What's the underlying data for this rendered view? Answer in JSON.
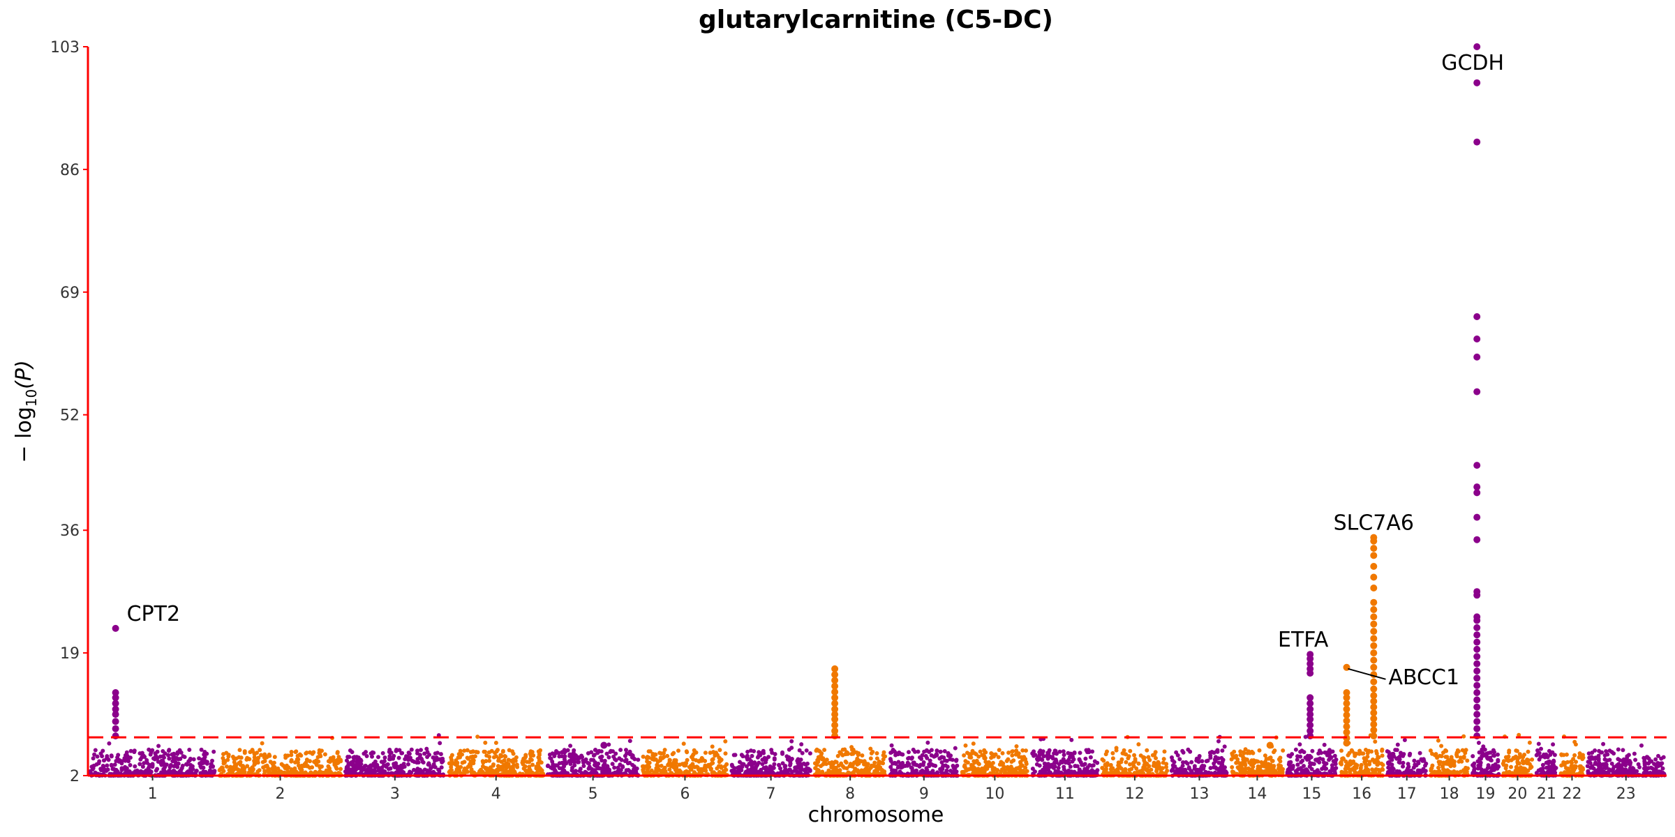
{
  "chart_data": {
    "type": "scatter",
    "subtype": "manhattan",
    "title": "glutarylcarnitine (C5-DC)",
    "xlabel": "chromosome",
    "ylabel_prefix": "− log",
    "ylabel_sub": "10",
    "ylabel_suffix": "(P)",
    "ylim": [
      2,
      103
    ],
    "yticks": [
      2,
      19,
      36,
      52,
      69,
      86,
      103
    ],
    "threshold": 7.3,
    "threshold_color": "#ff0000",
    "axis_color": "#ff0000",
    "colors": {
      "odd": "#8b008b",
      "even": "#f07800"
    },
    "chromosomes": [
      {
        "label": "1",
        "start": 0,
        "end": 248
      },
      {
        "label": "2",
        "start": 248,
        "end": 490
      },
      {
        "label": "3",
        "start": 490,
        "end": 688
      },
      {
        "label": "4",
        "start": 688,
        "end": 878
      },
      {
        "label": "5",
        "start": 878,
        "end": 1060
      },
      {
        "label": "6",
        "start": 1060,
        "end": 1231
      },
      {
        "label": "7",
        "start": 1231,
        "end": 1390
      },
      {
        "label": "8",
        "start": 1390,
        "end": 1535
      },
      {
        "label": "9",
        "start": 1535,
        "end": 1673
      },
      {
        "label": "10",
        "start": 1673,
        "end": 1807
      },
      {
        "label": "11",
        "start": 1807,
        "end": 1942
      },
      {
        "label": "12",
        "start": 1942,
        "end": 2075
      },
      {
        "label": "13",
        "start": 2075,
        "end": 2190
      },
      {
        "label": "14",
        "start": 2190,
        "end": 2297
      },
      {
        "label": "15",
        "start": 2297,
        "end": 2399
      },
      {
        "label": "16",
        "start": 2399,
        "end": 2489
      },
      {
        "label": "17",
        "start": 2489,
        "end": 2572
      },
      {
        "label": "18",
        "start": 2572,
        "end": 2652
      },
      {
        "label": "19",
        "start": 2652,
        "end": 2711
      },
      {
        "label": "20",
        "start": 2711,
        "end": 2775
      },
      {
        "label": "21",
        "start": 2775,
        "end": 2822
      },
      {
        "label": "22",
        "start": 2822,
        "end": 2873
      },
      {
        "label": "23",
        "start": 2873,
        "end": 3029
      }
    ],
    "peaks": [
      {
        "chr": "1",
        "pos": 53,
        "values": [
          7.5,
          8.5,
          9.5,
          10.5,
          11.2,
          12.0,
          12.8,
          13.5,
          22.4
        ]
      },
      {
        "chr": "5",
        "pos": 112,
        "values": [
          6.2
        ]
      },
      {
        "chr": "8",
        "pos": 43,
        "values": [
          7.5,
          8.2,
          9.0,
          9.8,
          10.5,
          11.2,
          12.0,
          12.8,
          13.6,
          14.4,
          15.2,
          16.0,
          16.8
        ]
      },
      {
        "chr": "14",
        "pos": 78,
        "values": [
          6.2
        ]
      },
      {
        "chr": "15",
        "pos": 48,
        "values": [
          7.5,
          8.2,
          9.0,
          9.8,
          10.5,
          11.2,
          12.0,
          12.8,
          16.2,
          16.8,
          17.5,
          18.2,
          18.8
        ]
      },
      {
        "chr": "16",
        "pos": 16,
        "values": [
          6.5,
          7.2,
          8.0,
          8.8,
          9.6,
          10.4,
          11.2,
          12.0,
          12.8,
          13.5,
          17.0
        ]
      },
      {
        "chr": "16",
        "pos": 68,
        "values": [
          7.5,
          8.3,
          9.1,
          9.9,
          10.7,
          11.5,
          12.3,
          13.1,
          14.0,
          15.0,
          16.0,
          17.0,
          18.0,
          19.0,
          20.0,
          21.0,
          22.0,
          23.0,
          24.0,
          25.0,
          26.0,
          28.0,
          29.5,
          31.0,
          32.5,
          33.5,
          34.5,
          35.0
        ]
      },
      {
        "chr": "19",
        "pos": 13,
        "values": [
          7.5,
          8.5,
          9.5,
          10.5,
          11.5,
          12.5,
          13.5,
          14.5,
          15.5,
          16.5,
          17.5,
          18.5,
          19.5,
          20.5,
          21.5,
          22.5,
          23.5,
          24.0,
          27.0,
          27.5,
          34.7,
          37.8,
          41.2,
          42.0,
          45.0,
          55.2,
          60.0,
          62.5,
          65.6,
          89.8,
          98.0,
          103.0
        ]
      }
    ],
    "annotations": [
      {
        "label": "CPT2",
        "chr": "1",
        "pos": 53,
        "y": 22.4
      },
      {
        "label": "ETFA",
        "chr": "15",
        "pos": 48,
        "y": 18.8
      },
      {
        "label": "ABCC1",
        "chr": "16",
        "pos": 16,
        "y": 17.0
      },
      {
        "label": "SLC7A6",
        "chr": "16",
        "pos": 68,
        "y": 35.0
      },
      {
        "label": "GCDH",
        "chr": "19",
        "pos": 13,
        "y": 103.0
      }
    ]
  }
}
